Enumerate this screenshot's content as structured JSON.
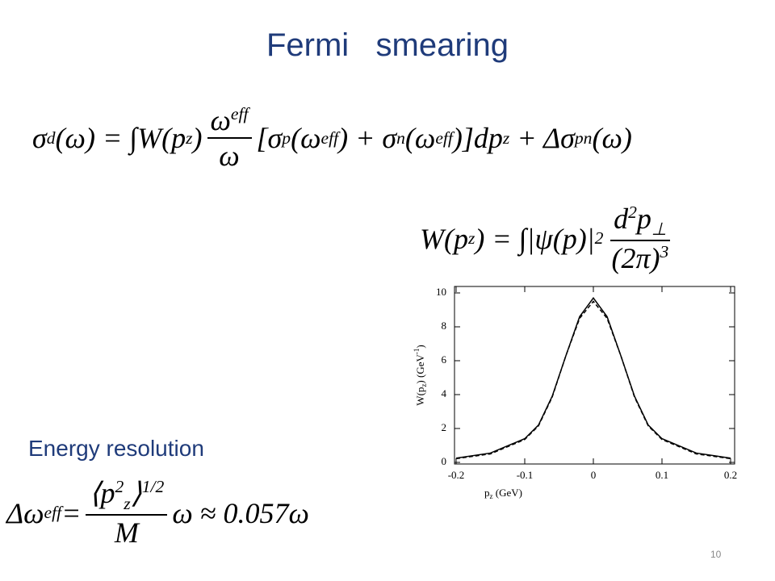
{
  "title": "Fermi   smearing",
  "equations": [
    [
      "σ",
      "d",
      "(ω) = ∫W(p",
      "z",
      ")",
      "ω",
      "eff",
      "ω",
      "[σ",
      "p",
      "(ω",
      "eff",
      ") + σ",
      "n",
      "(ω",
      "eff",
      ")]dp",
      "z",
      " + Δσ",
      "pn",
      "(ω)"
    ],
    [
      "W(p",
      "z",
      ") = ∫|ψ(p)|",
      "2",
      "d",
      "2",
      "p",
      "⊥",
      "(2π)",
      "3"
    ],
    [
      "Δω",
      "eff",
      "=",
      "⟨p",
      "2",
      "z",
      "⟩",
      "1/2",
      "M",
      "ω ≈ 0.057ω"
    ]
  ],
  "subheading": "Energy resolution",
  "page_number": "10",
  "chart_data": {
    "type": "line",
    "y_label": [
      "W(p",
      "z",
      ")   (GeV",
      "-1",
      ")"
    ],
    "x_label": [
      "p",
      "z",
      "  (GeV)"
    ],
    "x": [
      -0.2,
      -0.15,
      -0.1,
      -0.08,
      -0.06,
      -0.04,
      -0.02,
      0,
      0.02,
      0.04,
      0.06,
      0.08,
      0.1,
      0.15,
      0.2
    ],
    "series": [
      {
        "color": "#000000",
        "line_style": "solid",
        "values": [
          0.25,
          0.55,
          1.4,
          2.2,
          3.9,
          6.3,
          8.6,
          9.7,
          8.6,
          6.3,
          3.9,
          2.2,
          1.4,
          0.55,
          0.25
        ]
      },
      {
        "color": "#000000",
        "line_style": "dashed",
        "values": [
          0.22,
          0.5,
          1.35,
          2.15,
          3.85,
          6.3,
          8.5,
          9.5,
          8.5,
          6.3,
          3.85,
          2.15,
          1.35,
          0.5,
          0.22
        ]
      }
    ],
    "xlim": [
      -0.2,
      0.2
    ],
    "xticks": [
      -0.2,
      -0.1,
      0,
      0.1,
      0.2
    ],
    "ylim": [
      0,
      10
    ],
    "yticks": [
      0,
      2,
      4,
      6,
      8,
      10
    ]
  }
}
